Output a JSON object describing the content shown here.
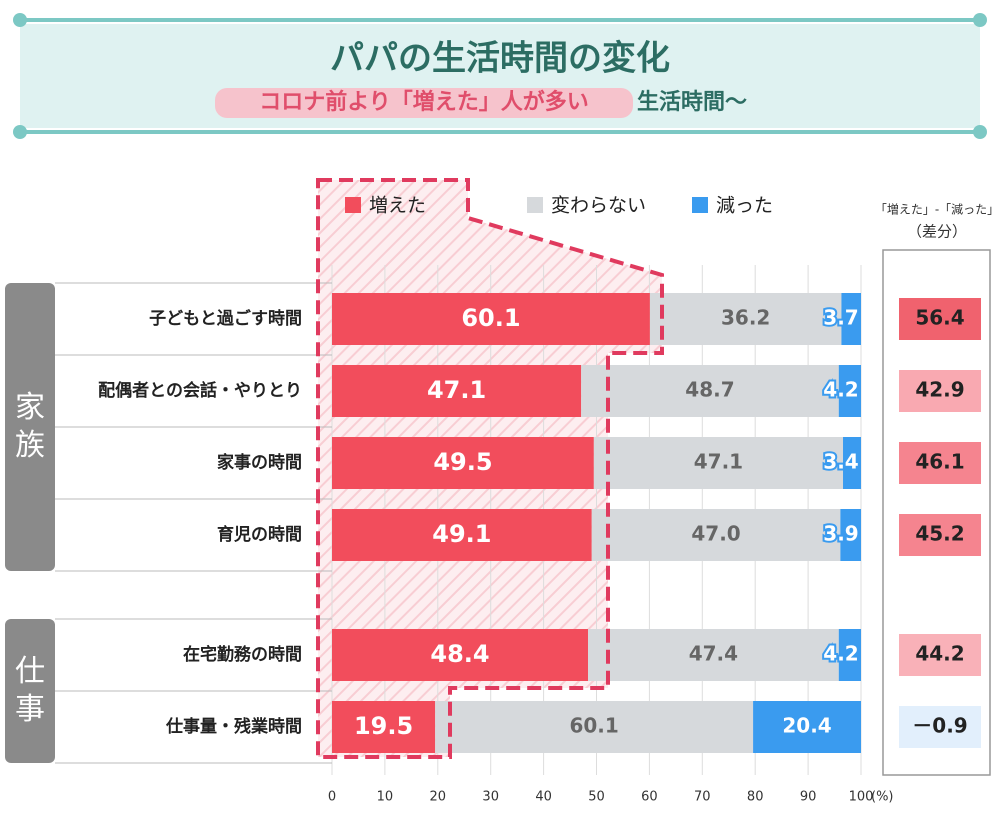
{
  "chart_data": {
    "type": "stacked-bar",
    "title": "パパの生活時間の変化",
    "subtitle_highlight": "コロナ前より「増えた」人が多い",
    "subtitle_rest": "生活時間〜",
    "groups": [
      {
        "name": "家族",
        "categories": [
          "子どもと過ごす時間",
          "配偶者との会話・やりとり",
          "家事の時間",
          "育児の時間"
        ]
      },
      {
        "name": "仕事",
        "categories": [
          "在宅勤務の時間",
          "仕事量・残業時間"
        ]
      }
    ],
    "series": [
      {
        "name": "増えた",
        "color": "#f24d5c",
        "values": [
          60.1,
          47.1,
          49.5,
          49.1,
          48.4,
          19.5
        ]
      },
      {
        "name": "変わらない",
        "color": "#d6d9dc",
        "values": [
          36.2,
          48.7,
          47.1,
          47.0,
          47.4,
          60.1
        ],
        "value_labels": [
          "36.2",
          "48.7",
          "47.1",
          "47.0",
          "47.4",
          "60.1"
        ]
      },
      {
        "name": "減った",
        "color": "#3a9bef",
        "values": [
          3.7,
          4.2,
          3.4,
          3.9,
          4.2,
          20.4
        ]
      }
    ],
    "xlim": [
      0,
      100
    ],
    "xticks": [
      0,
      10,
      20,
      30,
      40,
      50,
      60,
      70,
      80,
      90,
      100
    ],
    "x_unit": "(%)",
    "grid": true,
    "difference": {
      "title": "「増えた」-「減った」",
      "subtitle": "（差分）",
      "values": [
        56.4,
        42.9,
        46.1,
        45.2,
        44.2,
        -0.9
      ],
      "value_labels": [
        "56.4",
        "42.9",
        "46.1",
        "45.2",
        "44.2",
        "－0.9"
      ],
      "colors": [
        "#f0626e",
        "#f9a9b1",
        "#f5848f",
        "#f5848f",
        "#f9b1b8",
        "#e2effc"
      ]
    }
  }
}
